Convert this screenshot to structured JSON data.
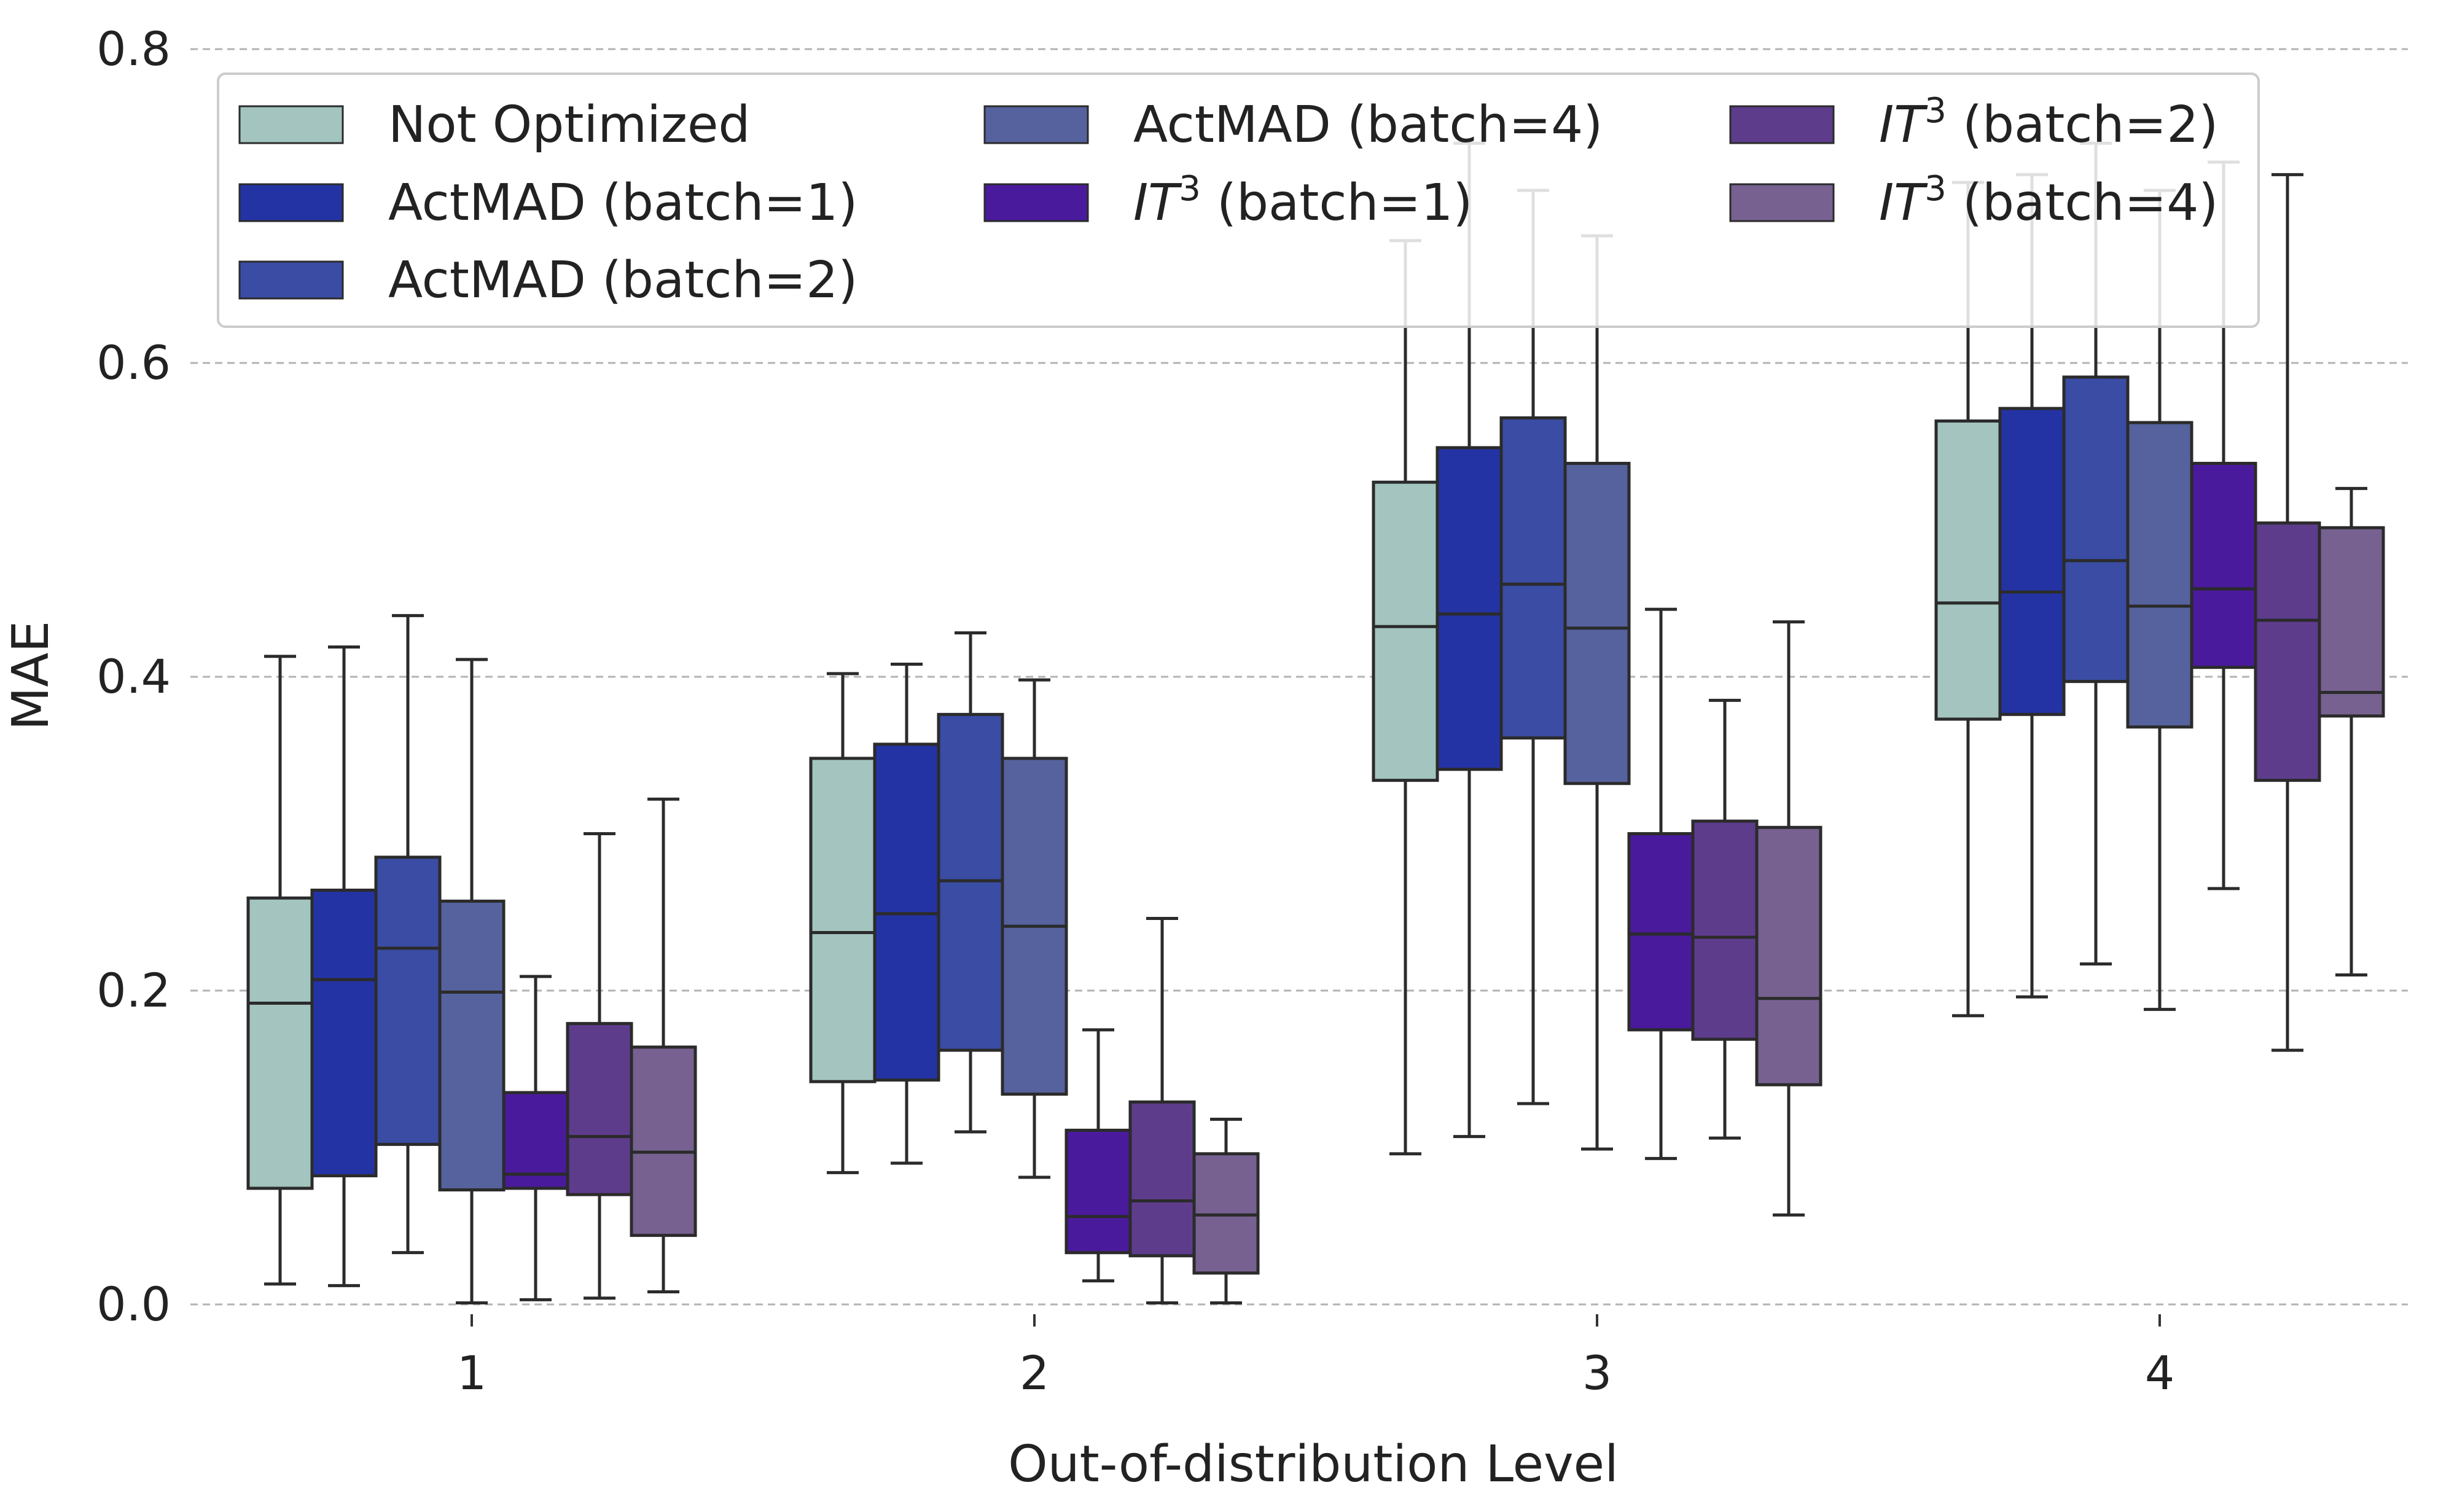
{
  "chart_data": {
    "type": "boxplot",
    "title": "",
    "xlabel": "Out-of-distribution Level",
    "ylabel": "MAE",
    "ylim": [
      0.0,
      0.8
    ],
    "yticks": [
      "0.0",
      "0.2",
      "0.4",
      "0.6",
      "0.8"
    ],
    "categories": [
      "1",
      "2",
      "3",
      "4"
    ],
    "grid": "horizontal dashed",
    "legend": {
      "placement": "top-left",
      "ncol": 3
    },
    "series": [
      {
        "name": "Not Optimized",
        "legend_main": "Not Optimized",
        "legend_sup": "",
        "legend_tail": "",
        "color": "#a3c4bf",
        "boxes": [
          {
            "whislo": 0.013,
            "q1": 0.074,
            "med": 0.192,
            "q3": 0.259,
            "whishi": 0.413
          },
          {
            "whislo": 0.084,
            "q1": 0.142,
            "med": 0.237,
            "q3": 0.348,
            "whishi": 0.402
          },
          {
            "whislo": 0.096,
            "q1": 0.334,
            "med": 0.432,
            "q3": 0.524,
            "whishi": 0.678
          },
          {
            "whislo": 0.184,
            "q1": 0.373,
            "med": 0.447,
            "q3": 0.563,
            "whishi": 0.715
          }
        ]
      },
      {
        "name": "ActMAD (batch=1)",
        "legend_main": "ActMAD (batch=1)",
        "legend_sup": "",
        "legend_tail": "",
        "color": "#2433a3",
        "boxes": [
          {
            "whislo": 0.012,
            "q1": 0.082,
            "med": 0.207,
            "q3": 0.264,
            "whishi": 0.419
          },
          {
            "whislo": 0.09,
            "q1": 0.143,
            "med": 0.249,
            "q3": 0.357,
            "whishi": 0.408
          },
          {
            "whislo": 0.107,
            "q1": 0.341,
            "med": 0.44,
            "q3": 0.546,
            "whishi": 0.74
          },
          {
            "whislo": 0.196,
            "q1": 0.376,
            "med": 0.454,
            "q3": 0.571,
            "whishi": 0.72
          }
        ]
      },
      {
        "name": "ActMAD (batch=2)",
        "legend_main": "ActMAD (batch=2)",
        "legend_sup": "",
        "legend_tail": "",
        "color": "#3a4ca3",
        "boxes": [
          {
            "whislo": 0.033,
            "q1": 0.102,
            "med": 0.227,
            "q3": 0.285,
            "whishi": 0.439
          },
          {
            "whislo": 0.11,
            "q1": 0.162,
            "med": 0.27,
            "q3": 0.376,
            "whishi": 0.428
          },
          {
            "whislo": 0.128,
            "q1": 0.361,
            "med": 0.459,
            "q3": 0.565,
            "whishi": 0.71
          },
          {
            "whislo": 0.217,
            "q1": 0.397,
            "med": 0.474,
            "q3": 0.591,
            "whishi": 0.74
          }
        ]
      },
      {
        "name": "ActMAD (batch=4)",
        "legend_main": "ActMAD (batch=4)",
        "legend_sup": "",
        "legend_tail": "",
        "color": "#56629d",
        "boxes": [
          {
            "whislo": 0.001,
            "q1": 0.073,
            "med": 0.199,
            "q3": 0.257,
            "whishi": 0.411
          },
          {
            "whislo": 0.081,
            "q1": 0.134,
            "med": 0.241,
            "q3": 0.348,
            "whishi": 0.398
          },
          {
            "whislo": 0.099,
            "q1": 0.332,
            "med": 0.431,
            "q3": 0.536,
            "whishi": 0.681
          },
          {
            "whislo": 0.188,
            "q1": 0.368,
            "med": 0.445,
            "q3": 0.562,
            "whishi": 0.71
          }
        ]
      },
      {
        "name": "IT3 (batch=1)",
        "legend_main": "IT",
        "legend_sup": "3",
        "legend_tail": " (batch=1)",
        "color": "#4a1a9c",
        "boxes": [
          {
            "whislo": 0.003,
            "q1": 0.074,
            "med": 0.083,
            "q3": 0.135,
            "whishi": 0.209
          },
          {
            "whislo": 0.015,
            "q1": 0.033,
            "med": 0.056,
            "q3": 0.111,
            "whishi": 0.175
          },
          {
            "whislo": 0.093,
            "q1": 0.175,
            "med": 0.236,
            "q3": 0.3,
            "whishi": 0.443
          },
          {
            "whislo": 0.265,
            "q1": 0.406,
            "med": 0.456,
            "q3": 0.536,
            "whishi": 0.728
          }
        ]
      },
      {
        "name": "IT3 (batch=2)",
        "legend_main": "IT",
        "legend_sup": "3",
        "legend_tail": " (batch=2)",
        "color": "#5e3c8c",
        "boxes": [
          {
            "whislo": 0.004,
            "q1": 0.07,
            "med": 0.107,
            "q3": 0.179,
            "whishi": 0.3
          },
          {
            "whislo": 0.001,
            "q1": 0.031,
            "med": 0.066,
            "q3": 0.129,
            "whishi": 0.246
          },
          {
            "whislo": 0.106,
            "q1": 0.169,
            "med": 0.234,
            "q3": 0.308,
            "whishi": 0.385
          },
          {
            "whislo": 0.162,
            "q1": 0.334,
            "med": 0.436,
            "q3": 0.498,
            "whishi": 0.72
          }
        ]
      },
      {
        "name": "IT3 (batch=4)",
        "legend_main": "IT",
        "legend_sup": "3",
        "legend_tail": " (batch=4)",
        "color": "#766190",
        "boxes": [
          {
            "whislo": 0.008,
            "q1": 0.044,
            "med": 0.097,
            "q3": 0.164,
            "whishi": 0.322
          },
          {
            "whislo": 0.001,
            "q1": 0.02,
            "med": 0.057,
            "q3": 0.096,
            "whishi": 0.118
          },
          {
            "whislo": 0.057,
            "q1": 0.14,
            "med": 0.195,
            "q3": 0.304,
            "whishi": 0.435
          },
          {
            "whislo": 0.21,
            "q1": 0.375,
            "med": 0.39,
            "q3": 0.495,
            "whishi": 0.52
          }
        ]
      }
    ]
  }
}
